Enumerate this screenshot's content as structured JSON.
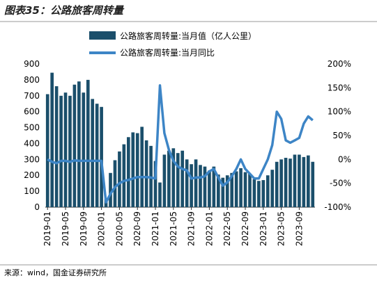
{
  "chart_data": {
    "type": "bar-line",
    "title": "图表35：公路旅客周转量",
    "source": "来源：wind，国金证券研究所",
    "categories": [
      "2019-01",
      null,
      null,
      null,
      "2019-05",
      null,
      null,
      null,
      "2019-09",
      null,
      null,
      null,
      "2020-01",
      null,
      null,
      null,
      "2020-05",
      null,
      null,
      null,
      "2020-09",
      null,
      null,
      null,
      "2021-01",
      null,
      null,
      null,
      "2021-05",
      null,
      null,
      null,
      "2021-09",
      null,
      null,
      null,
      "2022-01",
      null,
      null,
      null,
      "2022-05",
      null,
      null,
      null,
      "2022-09",
      null,
      null,
      null,
      "2023-01",
      null,
      null,
      null,
      "2023-05",
      null,
      null,
      null,
      "2023-09",
      null,
      null,
      null
    ],
    "series": [
      {
        "name": "公路旅客周转量:当月值（亿人公里）",
        "type": "bar",
        "color": "#1b4f6b",
        "values": [
          710,
          845,
          760,
          700,
          720,
          700,
          770,
          790,
          720,
          800,
          680,
          650,
          630,
          50,
          215,
          295,
          350,
          395,
          440,
          470,
          465,
          505,
          420,
          385,
          290,
          155,
          330,
          355,
          370,
          340,
          355,
          300,
          270,
          300,
          265,
          255,
          230,
          255,
          205,
          185,
          200,
          215,
          225,
          245,
          220,
          210,
          175,
          165,
          170,
          200,
          235,
          285,
          300,
          310,
          305,
          330,
          330,
          315,
          325,
          285
        ]
      },
      {
        "name": "公路旅客周转量:当月同比",
        "type": "line",
        "axis": "y2",
        "color": "#3d85c6",
        "values": [
          0,
          -5,
          -8,
          -3,
          -3,
          -5,
          -2,
          -3,
          -3,
          -3,
          -3,
          -3,
          -3,
          -90,
          -72,
          -58,
          -50,
          -45,
          -43,
          -40,
          -37,
          -37,
          -37,
          -38,
          -40,
          155,
          55,
          20,
          -3,
          -15,
          -20,
          -23,
          -40,
          -38,
          -38,
          -35,
          -25,
          -20,
          -38,
          -55,
          -48,
          -35,
          -20,
          0,
          -20,
          -30,
          -40,
          -40,
          -20,
          0,
          30,
          100,
          85,
          40,
          35,
          40,
          45,
          75,
          90,
          82
        ]
      }
    ],
    "ylim": [
      0,
      900
    ],
    "yticks": [
      0,
      100,
      200,
      300,
      400,
      500,
      600,
      700,
      800,
      900
    ],
    "y2lim": [
      -100,
      200
    ],
    "y2ticks": [
      {
        "value": -100,
        "label": "-100%"
      },
      {
        "value": -50,
        "label": "-50%"
      },
      {
        "value": 0,
        "label": "0%"
      },
      {
        "value": 50,
        "label": "50%"
      },
      {
        "value": 100,
        "label": "100%"
      },
      {
        "value": 150,
        "label": "150%"
      },
      {
        "value": 200,
        "label": "200%"
      }
    ]
  }
}
